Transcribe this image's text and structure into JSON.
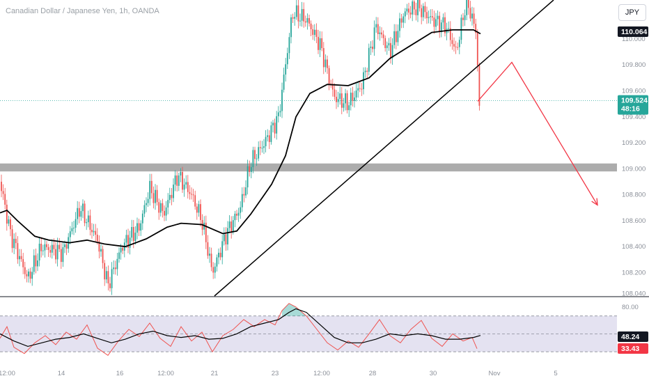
{
  "header": {
    "title": "Canadian Dollar / Japanese Yen, 1h, OANDA",
    "currency_button": "JPY"
  },
  "colors": {
    "up": "#26a69a",
    "down": "#ef5350",
    "ma_line": "#000000",
    "trendline": "#000000",
    "projection": "#f23645",
    "zone": "#9e9e9e",
    "rsi_line": "#ef5350",
    "rsi_band": "#e1dff0",
    "price_dots": "#26a69a"
  },
  "chart_data": [
    {
      "type": "candlestick",
      "title": "Canadian Dollar / Japanese Yen, 1h, OANDA",
      "ylim": [
        108.02,
        110.3
      ],
      "y_ticks": [
        "110.000",
        "109.800",
        "109.600",
        "109.400",
        "109.200",
        "109.000",
        "108.800",
        "108.600",
        "108.400",
        "108.200",
        "108.040"
      ],
      "x_ticks": [
        "12:00",
        "14",
        "16",
        "12:00",
        "21",
        "23",
        "12:00",
        "28",
        "30",
        "Nov",
        "5"
      ],
      "badges": {
        "high_price": "110.064",
        "current_price": "109.524",
        "countdown": "48:16"
      },
      "price_path": [
        [
          0,
          108.9
        ],
        [
          15,
          108.5
        ],
        [
          40,
          108.15
        ],
        [
          60,
          108.4
        ],
        [
          90,
          108.35
        ],
        [
          115,
          108.7
        ],
        [
          140,
          108.45
        ],
        [
          155,
          108.1
        ],
        [
          175,
          108.4
        ],
        [
          200,
          108.55
        ],
        [
          215,
          108.85
        ],
        [
          235,
          108.65
        ],
        [
          255,
          108.95
        ],
        [
          275,
          108.8
        ],
        [
          290,
          108.6
        ],
        [
          305,
          108.2
        ],
        [
          325,
          108.5
        ],
        [
          345,
          108.7
        ],
        [
          360,
          109.05
        ],
        [
          380,
          109.2
        ],
        [
          400,
          109.4
        ],
        [
          410,
          109.8
        ],
        [
          420,
          110.2
        ],
        [
          440,
          110.15
        ],
        [
          460,
          109.95
        ],
        [
          480,
          109.55
        ],
        [
          500,
          109.5
        ],
        [
          520,
          109.65
        ],
        [
          540,
          110.1
        ],
        [
          560,
          109.9
        ],
        [
          580,
          110.2
        ],
        [
          600,
          110.25
        ],
        [
          620,
          110.15
        ],
        [
          640,
          110.1
        ],
        [
          655,
          109.9
        ],
        [
          670,
          110.3
        ],
        [
          684,
          110.05
        ],
        [
          686,
          109.78
        ],
        [
          688,
          109.45
        ],
        [
          690,
          109.52
        ]
      ],
      "ma_path": [
        [
          0,
          108.66
        ],
        [
          10,
          108.68
        ],
        [
          25,
          108.6
        ],
        [
          50,
          108.48
        ],
        [
          70,
          108.45
        ],
        [
          100,
          108.43
        ],
        [
          125,
          108.45
        ],
        [
          150,
          108.42
        ],
        [
          180,
          108.4
        ],
        [
          210,
          108.46
        ],
        [
          240,
          108.55
        ],
        [
          260,
          108.58
        ],
        [
          290,
          108.57
        ],
        [
          320,
          108.5
        ],
        [
          340,
          108.52
        ],
        [
          360,
          108.65
        ],
        [
          390,
          108.88
        ],
        [
          410,
          109.1
        ],
        [
          425,
          109.4
        ],
        [
          445,
          109.58
        ],
        [
          470,
          109.65
        ],
        [
          500,
          109.64
        ],
        [
          530,
          109.7
        ],
        [
          560,
          109.85
        ],
        [
          590,
          109.95
        ],
        [
          620,
          110.05
        ],
        [
          650,
          110.07
        ],
        [
          680,
          110.07
        ],
        [
          690,
          110.04
        ]
      ],
      "trendline": {
        "from": [
          308,
          108.02
        ],
        "to": [
          795,
          110.3
        ]
      },
      "support_zone": [
        108.99,
        109.03
      ],
      "projection": [
        [
          686,
          109.52
        ],
        [
          735,
          109.82
        ],
        [
          858,
          108.72
        ]
      ]
    },
    {
      "type": "line",
      "title": "RSI",
      "ylim": [
        20,
        90
      ],
      "levels": [
        70,
        50,
        30
      ],
      "y_ticks": [
        "80.00"
      ],
      "badges": {
        "signal": "48.24",
        "rsi": "33.43"
      },
      "rsi_path": [
        [
          0,
          45
        ],
        [
          10,
          58
        ],
        [
          20,
          35
        ],
        [
          35,
          28
        ],
        [
          50,
          40
        ],
        [
          65,
          48
        ],
        [
          80,
          38
        ],
        [
          95,
          52
        ],
        [
          110,
          44
        ],
        [
          125,
          60
        ],
        [
          140,
          34
        ],
        [
          155,
          26
        ],
        [
          170,
          42
        ],
        [
          185,
          55
        ],
        [
          200,
          47
        ],
        [
          215,
          62
        ],
        [
          230,
          45
        ],
        [
          245,
          36
        ],
        [
          260,
          58
        ],
        [
          275,
          42
        ],
        [
          290,
          52
        ],
        [
          305,
          30
        ],
        [
          320,
          48
        ],
        [
          335,
          55
        ],
        [
          350,
          66
        ],
        [
          365,
          58
        ],
        [
          380,
          66
        ],
        [
          395,
          60
        ],
        [
          405,
          76
        ],
        [
          415,
          84
        ],
        [
          425,
          80
        ],
        [
          440,
          70
        ],
        [
          455,
          55
        ],
        [
          470,
          40
        ],
        [
          485,
          32
        ],
        [
          500,
          42
        ],
        [
          515,
          35
        ],
        [
          530,
          50
        ],
        [
          545,
          66
        ],
        [
          560,
          48
        ],
        [
          575,
          40
        ],
        [
          590,
          55
        ],
        [
          605,
          65
        ],
        [
          620,
          45
        ],
        [
          635,
          36
        ],
        [
          650,
          50
        ],
        [
          665,
          42
        ],
        [
          678,
          46
        ],
        [
          685,
          33.43
        ]
      ],
      "signal_path": [
        [
          0,
          50
        ],
        [
          20,
          42
        ],
        [
          40,
          36
        ],
        [
          60,
          40
        ],
        [
          80,
          44
        ],
        [
          100,
          46
        ],
        [
          120,
          50
        ],
        [
          140,
          45
        ],
        [
          160,
          40
        ],
        [
          180,
          44
        ],
        [
          200,
          50
        ],
        [
          220,
          53
        ],
        [
          240,
          48
        ],
        [
          260,
          46
        ],
        [
          280,
          48
        ],
        [
          300,
          44
        ],
        [
          320,
          45
        ],
        [
          340,
          50
        ],
        [
          360,
          58
        ],
        [
          380,
          62
        ],
        [
          400,
          66
        ],
        [
          415,
          74
        ],
        [
          425,
          78
        ],
        [
          440,
          74
        ],
        [
          460,
          60
        ],
        [
          480,
          46
        ],
        [
          500,
          40
        ],
        [
          520,
          40
        ],
        [
          540,
          44
        ],
        [
          560,
          50
        ],
        [
          580,
          48
        ],
        [
          600,
          50
        ],
        [
          620,
          48
        ],
        [
          640,
          44
        ],
        [
          660,
          44
        ],
        [
          680,
          46
        ],
        [
          690,
          48.24
        ]
      ]
    }
  ]
}
